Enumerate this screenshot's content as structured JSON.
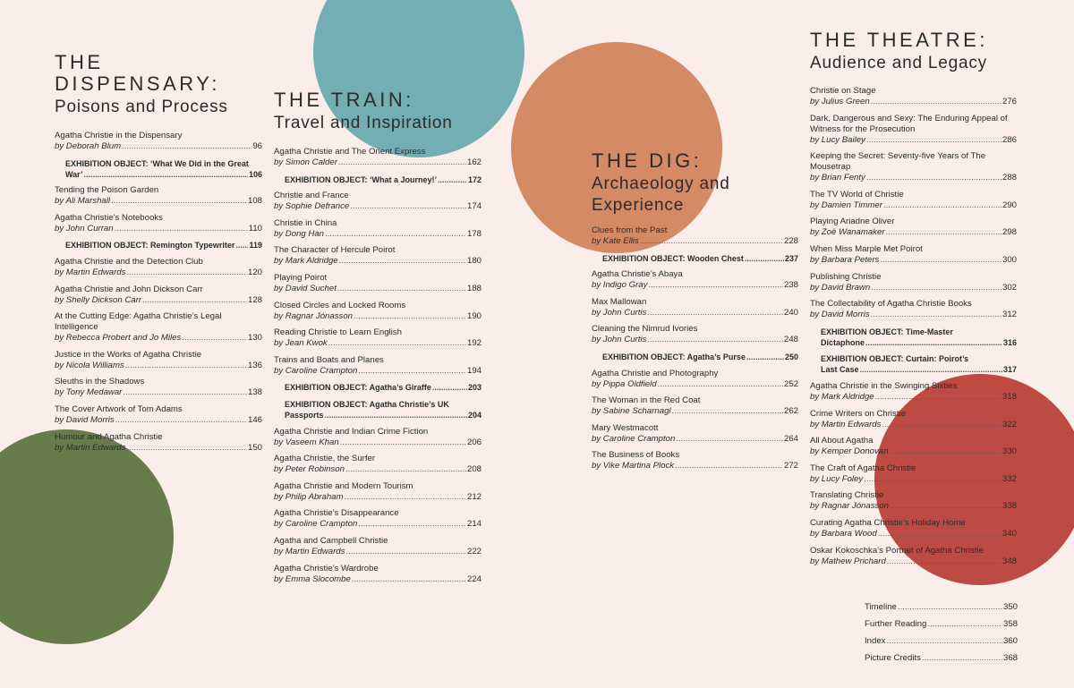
{
  "colors": {
    "background": "#fbeeea",
    "teal": "#73aeb5",
    "orange": "#d48a65",
    "green": "#677c4b",
    "red": "#bd4b44"
  },
  "sections": [
    {
      "title_lines": [
        "THE",
        "DISPENSARY:"
      ],
      "subtitle": "Poisons and Process",
      "entries": [
        {
          "title": "Agatha Christie in the Dispensary",
          "author": "by Deborah Blum",
          "page": "96"
        },
        {
          "title": "EXHIBITION OBJECT: ‘What We Did in the Great",
          "author": "War’",
          "page": "106",
          "ex": true
        },
        {
          "title": "Tending the Poison Garden",
          "author": "by Ali Marshall",
          "page": "108"
        },
        {
          "title": "Agatha Christie’s Notebooks",
          "author": "by John Curran",
          "page": "110"
        },
        {
          "title": "EXHIBITION OBJECT: Remington Typewriter",
          "author": "",
          "page": "119",
          "ex": true
        },
        {
          "title": "Agatha Christie and the Detection Club",
          "author": "by Martin Edwards",
          "page": "120"
        },
        {
          "title": "Agatha Christie and John Dickson Carr",
          "author": "by Shelly Dickson Carr",
          "page": "128"
        },
        {
          "title": "At the Cutting Edge: Agatha Christie’s Legal Intelligence",
          "author": "by Rebecca Probert and Jo Miles",
          "page": "130"
        },
        {
          "title": "Justice in the Works of Agatha Christie",
          "author": "by Nicola Williams",
          "page": "136"
        },
        {
          "title": "Sleuths in the Shadows",
          "author": "by Tony Medawar",
          "page": "138"
        },
        {
          "title": "The Cover Artwork of Tom Adams",
          "author": "by David Morris",
          "page": "146"
        },
        {
          "title": "Humour and Agatha Christie",
          "author": "by Martin Edwards",
          "page": "150"
        }
      ]
    },
    {
      "title_lines": [
        "THE TRAIN:"
      ],
      "subtitle": "Travel and Inspiration",
      "entries": [
        {
          "title": "Agatha Christie and The Orient Express",
          "author": "by Simon Calder",
          "page": "162"
        },
        {
          "title": "EXHIBITION OBJECT: ‘What a Journey!’",
          "author": "",
          "page": "172",
          "ex": true
        },
        {
          "title": "Christie and France",
          "author": "by Sophie Defrance",
          "page": "174"
        },
        {
          "title": "Christie in China",
          "author": "by Dong Han",
          "page": "178"
        },
        {
          "title": "The Character of Hercule Poirot",
          "author": "by Mark Aldridge",
          "page": "180"
        },
        {
          "title": "Playing Poirot",
          "author": "by David Suchet",
          "page": "188"
        },
        {
          "title": "Closed Circles and Locked Rooms",
          "author": "by Ragnar Jónasson",
          "page": "190"
        },
        {
          "title": "Reading Christie to Learn English",
          "author": "by Jean Kwok",
          "page": "192"
        },
        {
          "title": "Trains and Boats and Planes",
          "author": "by Caroline Crampton",
          "page": "194"
        },
        {
          "title": "EXHIBITION OBJECT: Agatha’s Giraffe",
          "author": "",
          "page": "203",
          "ex": true
        },
        {
          "title": "EXHIBITION OBJECT: Agatha Christie’s UK",
          "author": "Passports",
          "page": "204",
          "ex": true
        },
        {
          "title": "Agatha Christie and Indian Crime Fiction",
          "author": "by Vaseem Khan",
          "page": "206"
        },
        {
          "title": "Agatha Christie, the Surfer",
          "author": "by Peter Robinson",
          "page": "208"
        },
        {
          "title": "Agatha Christie and Modern Tourism",
          "author": "by Philip Abraham",
          "page": "212"
        },
        {
          "title": "Agatha Christie’s Disappearance",
          "author": "by Caroline Crampton",
          "page": "214"
        },
        {
          "title": "Agatha and Campbell Christie",
          "author": "by Martin Edwards",
          "page": "222"
        },
        {
          "title": "Agatha Christie’s Wardrobe",
          "author": "by Emma Slocombe",
          "page": "224"
        }
      ]
    },
    {
      "title_lines": [
        "THE DIG:"
      ],
      "subtitle": "Archaeology and Experience",
      "entries": [
        {
          "title": "Clues from the Past",
          "author": "by Kate Ellis",
          "page": "228"
        },
        {
          "title": "EXHIBITION OBJECT: Wooden Chest",
          "author": "",
          "page": "237",
          "ex": true
        },
        {
          "title": "Agatha Christie’s Abaya",
          "author": "by Indigo Gray",
          "page": "238"
        },
        {
          "title": "Max Mallowan",
          "author": "by John Curtis",
          "page": "240"
        },
        {
          "title": "Cleaning the Nimrud Ivories",
          "author": "by John Curtis",
          "page": "248"
        },
        {
          "title": "EXHIBITION OBJECT: Agatha’s Purse",
          "author": "",
          "page": "250",
          "ex": true
        },
        {
          "title": "Agatha Christie and Photography",
          "author": "by Pippa Oldfield",
          "page": "252"
        },
        {
          "title": "The Woman in the Red Coat",
          "author": "by Sabine Scharnagl",
          "page": "262"
        },
        {
          "title": "Mary Westmacott",
          "author": "by Caroline Crampton",
          "page": "264"
        },
        {
          "title": "The Business of Books",
          "author": "by Vike Martina Plock",
          "page": "272"
        }
      ]
    },
    {
      "title_lines": [
        "THE THEATRE:"
      ],
      "subtitle": "Audience and Legacy",
      "entries": [
        {
          "title": "Christie on Stage",
          "author": "by Julius Green",
          "page": "276"
        },
        {
          "title": "Dark, Dangerous and Sexy: The Enduring Appeal of Witness for the Prosecution",
          "author": "by Lucy Bailey",
          "page": "286"
        },
        {
          "title": "Keeping the Secret: Seventy-five Years of The Mousetrap",
          "author": "by Brian Fenty",
          "page": "288"
        },
        {
          "title": "The TV World of Christie",
          "author": "by Damien Timmer",
          "page": "290"
        },
        {
          "title": "Playing Ariadne Oliver",
          "author": "by Zoë Wanamaker",
          "page": "298"
        },
        {
          "title": "When Miss Marple Met Poirot",
          "author": "by Barbara Peters",
          "page": "300"
        },
        {
          "title": "Publishing Christie",
          "author": "by David Brawn",
          "page": "302"
        },
        {
          "title": "The Collectability of Agatha Christie Books",
          "author": "by David Morris",
          "page": "312"
        },
        {
          "title": "EXHIBITION OBJECT: Time-Master",
          "author": "Dictaphone",
          "page": "316",
          "ex": true
        },
        {
          "title": "EXHIBITION OBJECT: Curtain: Poirot’s",
          "author": "Last Case",
          "page": "317",
          "ex": true
        },
        {
          "title": "Agatha Christie in the Swinging Sixties",
          "author": "by Mark Aldridge",
          "page": "318"
        },
        {
          "title": "Crime Writers on Christie",
          "author": "by Martin Edwards",
          "page": "322"
        },
        {
          "title": "All About Agatha",
          "author": "by Kemper Donovan",
          "page": "330"
        },
        {
          "title": "The Craft of Agatha Christie",
          "author": "by Lucy Foley",
          "page": "332"
        },
        {
          "title": "Translating Christie",
          "author": "by Ragnar Jónasson",
          "page": "338"
        },
        {
          "title": "Curating Agatha Christie’s Holiday Home",
          "author": "by Barbara Wood",
          "page": "340"
        },
        {
          "title": "Oskar Kokoschka’s Portrait of Agatha Christie",
          "author": "by Mathew Prichard",
          "page": "348"
        }
      ]
    }
  ],
  "back_matter": [
    {
      "title": "Timeline",
      "page": "350"
    },
    {
      "title": "Further Reading",
      "page": "358"
    },
    {
      "title": "Index",
      "page": "360"
    },
    {
      "title": "Picture Credits",
      "page": "368"
    }
  ]
}
